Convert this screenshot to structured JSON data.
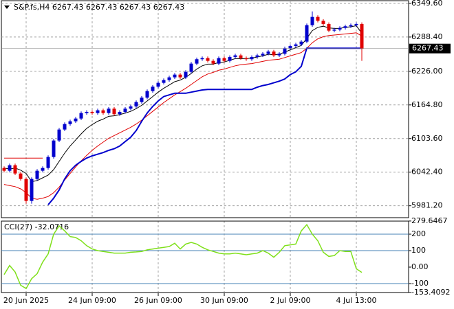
{
  "chart_data": [
    {
      "type": "candlestick",
      "title": "S&P.fs,H4  6267.43 6267.43 6267.43 6267.43",
      "categories": [
        null,
        null,
        null,
        null,
        "20 Jun 2025",
        null,
        null,
        null,
        null,
        null,
        null,
        null,
        null,
        null,
        null,
        null,
        "24 Jun 09:00",
        null,
        null,
        null,
        null,
        null,
        null,
        null,
        null,
        null,
        null,
        null,
        "26 Jun 09:00",
        null,
        null,
        null,
        null,
        null,
        null,
        null,
        null,
        null,
        null,
        null,
        "30 Jun 09:00",
        null,
        null,
        null,
        null,
        null,
        null,
        null,
        null,
        null,
        null,
        null,
        "2 Jul 09:00",
        null,
        null,
        null,
        null,
        null,
        null,
        null,
        null,
        null,
        null,
        null,
        "4 Jul 13:00",
        null
      ],
      "open": [
        6050,
        6045,
        6055,
        6040,
        6030,
        5990,
        6030,
        6045,
        6050,
        6070,
        6100,
        6120,
        6130,
        6135,
        6140,
        6150,
        6152,
        6150,
        6155,
        6150,
        6158,
        6148,
        6152,
        6158,
        6162,
        6170,
        6178,
        6190,
        6198,
        6205,
        6210,
        6215,
        6220,
        6215,
        6225,
        6240,
        6248,
        6250,
        6245,
        6240,
        6250,
        6245,
        6252,
        6255,
        6250,
        6248,
        6252,
        6255,
        6258,
        6262,
        6255,
        6258,
        6268,
        6272,
        6275,
        6280,
        6310,
        6325,
        6318,
        6312,
        6300,
        6302,
        6305,
        6308,
        6310,
        6312
      ],
      "high": [
        6053,
        6058,
        6058,
        6043,
        6033,
        6033,
        6048,
        6053,
        6073,
        6103,
        6123,
        6133,
        6138,
        6143,
        6153,
        6155,
        6155,
        6158,
        6158,
        6161,
        6161,
        6155,
        6161,
        6165,
        6173,
        6181,
        6193,
        6201,
        6208,
        6213,
        6218,
        6223,
        6223,
        6228,
        6243,
        6251,
        6253,
        6253,
        6248,
        6253,
        6253,
        6255,
        6258,
        6258,
        6253,
        6255,
        6258,
        6261,
        6265,
        6265,
        6261,
        6271,
        6275,
        6278,
        6283,
        6313,
        6335,
        6328,
        6321,
        6315,
        6305,
        6308,
        6311,
        6313,
        6315,
        6315
      ],
      "low": [
        6042,
        6042,
        6037,
        6027,
        5985,
        5985,
        6027,
        6042,
        6047,
        6067,
        6097,
        6117,
        6127,
        6132,
        6137,
        6147,
        6147,
        6147,
        6147,
        6147,
        6145,
        6145,
        6149,
        6155,
        6159,
        6167,
        6175,
        6187,
        6195,
        6202,
        6207,
        6212,
        6212,
        6212,
        6222,
        6237,
        6245,
        6242,
        6237,
        6237,
        6242,
        6242,
        6249,
        6247,
        6245,
        6245,
        6249,
        6252,
        6255,
        6252,
        6252,
        6255,
        6265,
        6269,
        6272,
        6277,
        6307,
        6315,
        6309,
        6297,
        6297,
        6299,
        6302,
        6305,
        6307,
        6245
      ],
      "close": [
        6045,
        6055,
        6040,
        6030,
        5990,
        6030,
        6045,
        6050,
        6070,
        6100,
        6120,
        6130,
        6135,
        6140,
        6150,
        6152,
        6150,
        6155,
        6150,
        6158,
        6148,
        6152,
        6158,
        6162,
        6170,
        6178,
        6190,
        6198,
        6205,
        6210,
        6215,
        6220,
        6215,
        6225,
        6240,
        6248,
        6250,
        6245,
        6240,
        6250,
        6245,
        6252,
        6255,
        6250,
        6248,
        6252,
        6255,
        6258,
        6262,
        6255,
        6258,
        6268,
        6272,
        6275,
        6280,
        6310,
        6325,
        6318,
        6312,
        6300,
        6302,
        6305,
        6308,
        6310,
        6312,
        6267.43
      ],
      "up_color": "#0000cd",
      "down_color": "#e00000",
      "lines": [
        {
          "color": "#000000",
          "values": [
            6050,
            6048,
            6050,
            6046,
            6040,
            6025,
            6027,
            6032,
            6037,
            6047,
            6062,
            6077,
            6090,
            6101,
            6112,
            6122,
            6129,
            6135,
            6139,
            6144,
            6145,
            6147,
            6150,
            6153,
            6158,
            6164,
            6172,
            6180,
            6188,
            6195,
            6201,
            6207,
            6210,
            6215,
            6222,
            6230,
            6236,
            6239,
            6239,
            6242,
            6243,
            6246,
            6249,
            6249,
            6249,
            6250,
            6252,
            6254,
            6257,
            6256,
            6257,
            6261,
            6265,
            6269,
            6273,
            6286,
            6300,
            6306,
            6308,
            6305,
            6304,
            6304,
            6306,
            6307,
            6309,
            6295
          ]
        },
        {
          "color": "#e00000",
          "values": [
            6020,
            6018,
            6016,
            6012,
            6005,
            5995,
            5993,
            5995,
            5998,
            6005,
            6015,
            6028,
            6040,
            6052,
            6063,
            6073,
            6082,
            6090,
            6097,
            6104,
            6109,
            6114,
            6119,
            6124,
            6130,
            6137,
            6145,
            6153,
            6161,
            6169,
            6176,
            6183,
            6189,
            6195,
            6202,
            6209,
            6216,
            6221,
            6224,
            6228,
            6230,
            6233,
            6236,
            6238,
            6239,
            6240,
            6242,
            6244,
            6246,
            6247,
            6248,
            6251,
            6254,
            6257,
            6260,
            6268,
            6278,
            6285,
            6289,
            6291,
            6292,
            6293,
            6294,
            6295,
            6296,
            6290
          ]
        },
        {
          "color": "#0000cd",
          "values": [
            null,
            null,
            null,
            null,
            null,
            null,
            null,
            null,
            5983,
            5995,
            6010,
            6030,
            6045,
            6055,
            6062,
            6068,
            6072,
            6075,
            6078,
            6082,
            6085,
            6090,
            6098,
            6106,
            6118,
            6135,
            6150,
            6162,
            6172,
            6180,
            6183,
            6186,
            6186,
            6186,
            6188,
            6190,
            6192,
            6193,
            6193,
            6193,
            6193,
            6193,
            6193,
            6193,
            6193,
            6193,
            6197,
            6200,
            6202,
            6205,
            6208,
            6212,
            6220,
            6225,
            6235,
            6268,
            6268,
            6268,
            6268,
            6268,
            6268,
            6268,
            6268,
            6268,
            6268,
            6268
          ]
        },
        {
          "color": "#e00000",
          "values": [
            6068,
            6068,
            6068,
            6068,
            6068,
            6068,
            6068,
            6068,
            null,
            null,
            null,
            null,
            null,
            null,
            null,
            null,
            null,
            null,
            null,
            null,
            null,
            null,
            null,
            null,
            null,
            null,
            null,
            null,
            null,
            null,
            null,
            null,
            null,
            null,
            null,
            null,
            null,
            null,
            null,
            null,
            null,
            null,
            null,
            null,
            null,
            null,
            null,
            null,
            null,
            null,
            null,
            null,
            null,
            null,
            null,
            null,
            null,
            null,
            null,
            null,
            null,
            null,
            null,
            null,
            null,
            null
          ]
        }
      ],
      "last_price": {
        "value": 6267.43,
        "label": "6267.43"
      },
      "ylim": [
        5958.3,
        6355.8
      ],
      "yticks": [
        {
          "value": 6349.6,
          "label": "6349.60"
        },
        {
          "value": 6288.4,
          "label": "6288.40"
        },
        {
          "value": 6226,
          "label": "6226.00"
        },
        {
          "value": 6164.8,
          "label": "6164.80"
        },
        {
          "value": 6103.6,
          "label": "6103.60"
        },
        {
          "value": 6042.4,
          "label": "6042.40"
        },
        {
          "value": 5981.2,
          "label": "5981.20"
        }
      ],
      "grid": true
    },
    {
      "type": "line",
      "title": "CCI(27) -32.0716",
      "color": "#7fe01a",
      "level_color": "#4682b4",
      "values": [
        -45,
        10,
        -30,
        -110,
        -130,
        -70,
        -40,
        30,
        80,
        200,
        250,
        220,
        185,
        180,
        160,
        130,
        110,
        100,
        95,
        90,
        85,
        85,
        85,
        90,
        92,
        95,
        105,
        110,
        115,
        120,
        125,
        145,
        110,
        140,
        150,
        140,
        120,
        105,
        95,
        85,
        80,
        80,
        85,
        80,
        75,
        80,
        85,
        100,
        85,
        60,
        90,
        130,
        135,
        140,
        220,
        258,
        200,
        160,
        90,
        65,
        70,
        100,
        95,
        95,
        -10,
        -32.0716
      ],
      "ylim": [
        -158.3,
        283.3
      ],
      "yticks": [
        {
          "value": 279.6467,
          "label": "279.6467"
        },
        200,
        100,
        {
          "value": 0,
          "label": "0.00"
        },
        -100,
        {
          "value": -153.4092,
          "label": "-153.4092"
        }
      ],
      "levels": [
        200,
        100,
        -100
      ]
    }
  ]
}
